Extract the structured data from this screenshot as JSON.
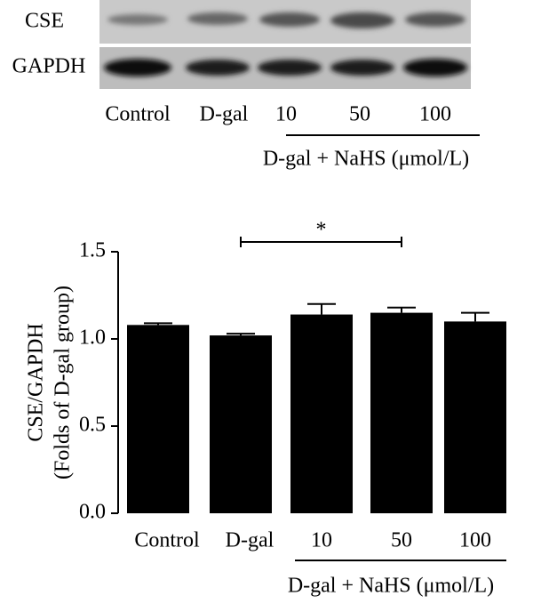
{
  "blot": {
    "rows": [
      "CSE",
      "GAPDH"
    ],
    "lanes": [
      "Control",
      "D-gal",
      "10",
      "50",
      "100"
    ],
    "group_label": "D-gal + NaHS (μmol/L)"
  },
  "chart_data": {
    "type": "bar",
    "y_label": [
      "CSE/GAPDH",
      "(Folds of D-gal group)"
    ],
    "categories": [
      "Control",
      "D-gal",
      "10",
      "50",
      "100"
    ],
    "values": [
      1.08,
      1.02,
      1.14,
      1.15,
      1.1
    ],
    "errors": [
      0.01,
      0.01,
      0.06,
      0.03,
      0.05
    ],
    "color": "#000000",
    "ylim": [
      0,
      1.5
    ],
    "yticks": [
      {
        "value": 0,
        "label": "0.0"
      },
      {
        "value": 0.5,
        "label": "0.5"
      },
      {
        "value": 1,
        "label": "1.0"
      },
      {
        "value": 1.5,
        "label": "1.5"
      }
    ],
    "group_label": "D-gal + NaHS (μmol/L)",
    "significance": {
      "categories": [
        "D-gal",
        "50"
      ],
      "label": "*"
    }
  }
}
